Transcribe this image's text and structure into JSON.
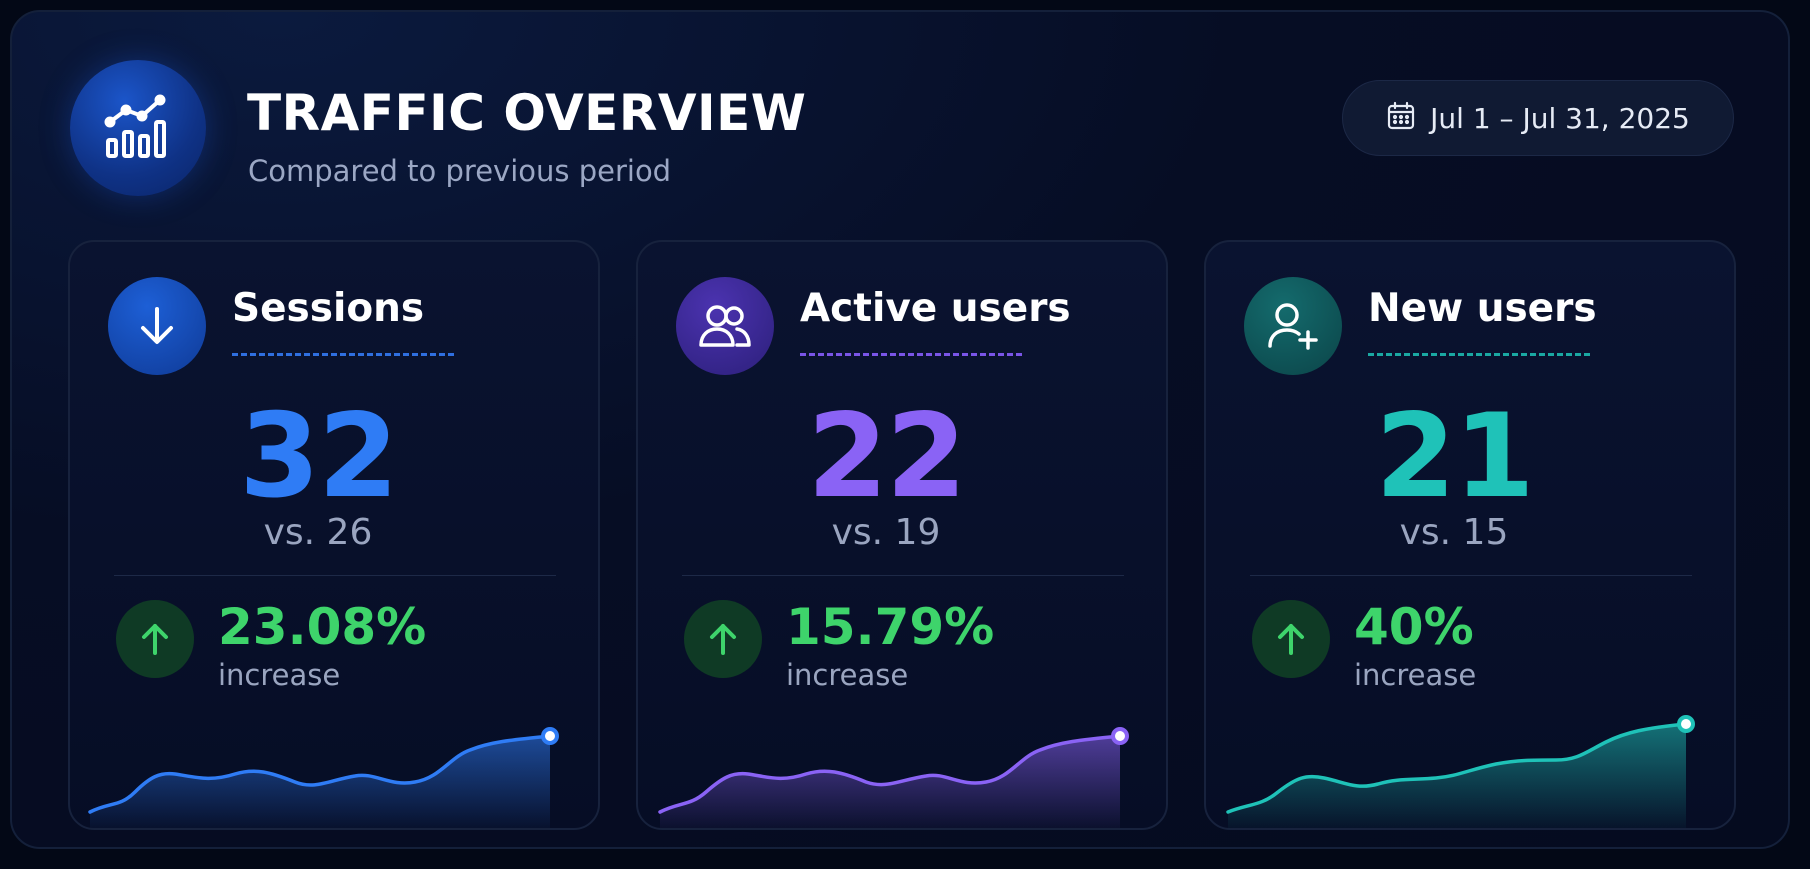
{
  "header": {
    "title": "TRAFFIC OVERVIEW",
    "subtitle": "Compared to previous period",
    "logo_icon": "chart-growth-icon",
    "date_range": "Jul 1 – Jul 31, 2025",
    "date_icon": "calendar-icon"
  },
  "cards": [
    {
      "title": "Sessions",
      "icon": "arrow-down-icon",
      "value": "32",
      "comparison": "vs. 26",
      "change_percent": "23.08%",
      "change_label": "increase",
      "change_icon": "arrow-up-icon",
      "accent": "#2f7cf5"
    },
    {
      "title": "Active users",
      "icon": "users-icon",
      "value": "22",
      "comparison": "vs. 19",
      "change_percent": "15.79%",
      "change_label": "increase",
      "change_icon": "arrow-up-icon",
      "accent": "#8a63f5"
    },
    {
      "title": "New users",
      "icon": "user-plus-icon",
      "value": "21",
      "comparison": "vs. 15",
      "change_percent": "40%",
      "change_label": "increase",
      "change_icon": "arrow-up-icon",
      "accent": "#1fc2b8"
    }
  ],
  "colors": {
    "increase": "#3ed46b",
    "background": "#050b1f"
  }
}
